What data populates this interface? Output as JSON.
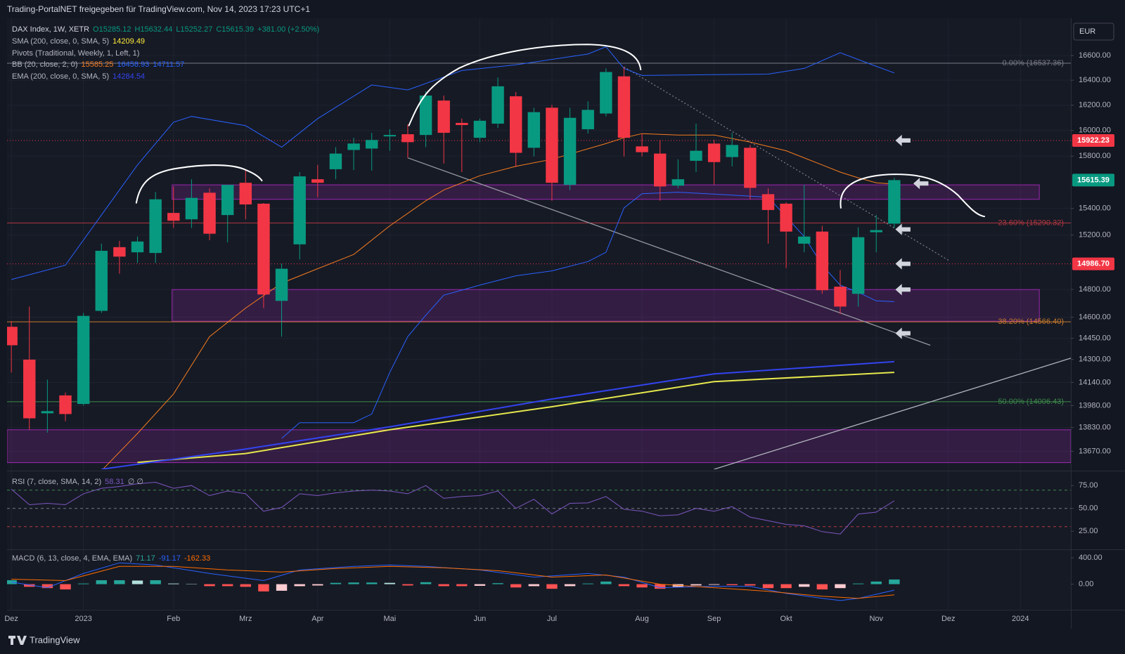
{
  "header": {
    "title": "Trading-PortalNET freigegeben für TradingView.com, Nov 14, 2023 17:23 UTC+1"
  },
  "currency": "EUR",
  "footer": "TradingView",
  "chart_data": [
    {
      "type": "candlestick",
      "legend": {
        "symbol": "DAX Index, 1W, XETR",
        "ohlc_labels": [
          "O15285.12",
          "H15632.44",
          "L15252.27",
          "C15615.39"
        ],
        "change": "+381.00 (+2.50%)"
      },
      "colors": {
        "up": "#089981",
        "down": "#f23645"
      },
      "x": [
        0,
        1,
        2,
        3,
        4,
        5,
        6,
        7,
        8,
        9,
        10,
        11,
        12,
        13,
        14,
        15,
        16,
        17,
        18,
        19,
        20,
        21,
        22,
        23,
        24,
        25,
        26,
        27,
        28,
        29,
        30,
        31,
        32,
        33,
        34,
        35,
        36,
        37,
        38,
        39,
        40,
        41,
        42,
        43,
        44,
        45,
        46,
        47,
        48,
        49
      ],
      "open": [
        14531,
        14299,
        13927,
        14050,
        13991,
        14645,
        15110,
        15072,
        15067,
        15366,
        15318,
        15519,
        15350,
        15595,
        15436,
        14717,
        15131,
        15622,
        15699,
        15848,
        15859,
        15954,
        15971,
        15965,
        16237,
        16060,
        15943,
        16054,
        16271,
        15865,
        16180,
        15579,
        16010,
        16134,
        16431,
        15876,
        15820,
        15573,
        15764,
        15898,
        15793,
        15865,
        15508,
        15436,
        15136,
        15226,
        14820,
        14768,
        15221,
        15285.12
      ],
      "high": [
        14572,
        14676,
        14159,
        14070,
        14630,
        15136,
        15157,
        15189,
        15525,
        15567,
        15622,
        15552,
        15579,
        15688,
        15441,
        14988,
        15677,
        15732,
        15870,
        15943,
        15982,
        16010,
        16049,
        16311,
        16277,
        16094,
        16094,
        16422,
        16305,
        16180,
        16203,
        16180,
        16231,
        16496,
        16507,
        15976,
        15926,
        15776,
        16054,
        15926,
        15982,
        15887,
        15552,
        15447,
        15579,
        15269,
        14941,
        15258,
        15350,
        15632.44
      ],
      "low": [
        14209,
        13815,
        13796,
        13873,
        13981,
        14630,
        14915,
        14993,
        14993,
        15253,
        15253,
        15162,
        15146,
        15318,
        14665,
        14461,
        15019,
        15485,
        15622,
        15693,
        15688,
        15842,
        15787,
        15870,
        15743,
        15677,
        15909,
        16021,
        15716,
        15798,
        15458,
        15540,
        15976,
        16111,
        15798,
        15798,
        15458,
        15552,
        15677,
        15579,
        15721,
        15469,
        15136,
        14956,
        15072,
        14768,
        14624,
        14676,
        15072,
        15252.27
      ],
      "close": [
        14400,
        13893,
        13942,
        13922,
        14609,
        15083,
        15040,
        15152,
        15469,
        15307,
        15480,
        15210,
        15579,
        15430,
        14763,
        14951,
        15644,
        15595,
        15820,
        15898,
        15926,
        15965,
        15909,
        16277,
        15982,
        16043,
        16077,
        16351,
        15826,
        16145,
        15595,
        16100,
        16163,
        16466,
        15943,
        15831,
        15567,
        15622,
        15842,
        15754,
        15887,
        15556,
        15388,
        15226,
        15189,
        14794,
        14676,
        15184,
        15237,
        15615.39
      ],
      "xlim": [
        -0.24,
        58.8
      ],
      "xticks": [
        {
          "value": 0,
          "label": "Dez"
        },
        {
          "value": 4,
          "label": "2023"
        },
        {
          "value": 9,
          "label": "Feb"
        },
        {
          "value": 13,
          "label": "Mrz"
        },
        {
          "value": 17,
          "label": "Apr"
        },
        {
          "value": 21,
          "label": "Mai"
        },
        {
          "value": 26,
          "label": "Jun"
        },
        {
          "value": 30,
          "label": "Jul"
        },
        {
          "value": 35,
          "label": "Aug"
        },
        {
          "value": 39,
          "label": "Sep"
        },
        {
          "value": 43,
          "label": "Okt"
        },
        {
          "value": 48,
          "label": "Nov"
        },
        {
          "value": 52,
          "label": "Dez"
        },
        {
          "value": 56,
          "label": "2024"
        }
      ],
      "ylim": [
        13550,
        16906
      ],
      "log_scale": true,
      "grid": true,
      "yticks": [
        {
          "value": 16600,
          "label": "16600.00"
        },
        {
          "value": 16400,
          "label": "16400.00"
        },
        {
          "value": 16200,
          "label": "16200.00"
        },
        {
          "value": 16000,
          "label": "16000.00"
        },
        {
          "value": 15800,
          "label": "15800.00"
        },
        {
          "value": 15400,
          "label": "15400.00"
        },
        {
          "value": 15200,
          "label": "15200.00"
        },
        {
          "value": 14800,
          "label": "14800.00"
        },
        {
          "value": 14600,
          "label": "14600.00"
        },
        {
          "value": 14450,
          "label": "14450.00"
        },
        {
          "value": 14300,
          "label": "14300.00"
        },
        {
          "value": 14140,
          "label": "14140.00"
        },
        {
          "value": 13980,
          "label": "13980.00"
        },
        {
          "value": 13830,
          "label": "13830.00"
        },
        {
          "value": 13670,
          "label": "13670.00"
        }
      ],
      "sma": {
        "name": "SMA (200, close, 0, SMA, 5)",
        "color": "#e6e84c",
        "x": [
          7,
          13,
          21,
          30,
          39,
          49
        ],
        "values": [
          13596,
          13655,
          13815,
          13972,
          14145,
          14209.49
        ]
      },
      "pivots": {
        "name": "Pivots (Traditional, Weekly, 1, Left, 1)",
        "color": "#f23645",
        "levels": [
          15922.23,
          {
            "value": 14986.7,
            "label": "14986.70"
          }
        ]
      },
      "bollinger": {
        "name": "BB (20, close, 2, 0)",
        "basis": {
          "color": "#f57c1f",
          "x": [
            5,
            7,
            9,
            11,
            13,
            15,
            17,
            19,
            21,
            23,
            24,
            26,
            28,
            30,
            33,
            34,
            35,
            37,
            39,
            41,
            43,
            45,
            46,
            47,
            48,
            49
          ],
          "values": [
            13540,
            13790,
            14060,
            14461,
            14665,
            14846,
            14951,
            15056,
            15269,
            15458,
            15540,
            15649,
            15721,
            15776,
            15898,
            15943,
            15976,
            15965,
            15965,
            15909,
            15842,
            15732,
            15677,
            15633,
            15595,
            15585.25
          ]
        },
        "upper": {
          "color": "#2962ff",
          "x": [
            0,
            3,
            5,
            7,
            9,
            10,
            13,
            15,
            17,
            20,
            22,
            25,
            28,
            32,
            33,
            34,
            35,
            42,
            44,
            46,
            48,
            49
          ],
          "values": [
            14872,
            14977,
            15350,
            15732,
            16066,
            16111,
            16038,
            15870,
            16094,
            16362,
            16322,
            16478,
            16524,
            16612,
            16671,
            16495,
            16438,
            16449,
            16495,
            16623,
            16512,
            16458.93
          ]
        },
        "lower": {
          "color": "#2962ff",
          "x": [
            15,
            16,
            19,
            20,
            21,
            22,
            23,
            24,
            26,
            28,
            30,
            32,
            33,
            34,
            35,
            37,
            40,
            42,
            44,
            45,
            46,
            47,
            48,
            49
          ],
          "values": [
            13757,
            13863,
            13863,
            13922,
            14209,
            14461,
            14614,
            14758,
            14831,
            14899,
            14935,
            15004,
            15072,
            15404,
            15512,
            15523,
            15501,
            15485,
            15189,
            14977,
            14831,
            14779,
            14717,
            14711.57
          ]
        }
      },
      "ema": {
        "name": "EMA (200, close, 0, SMA, 5)",
        "color": "#3344f0",
        "x": [
          5,
          13,
          21,
          30,
          39,
          49
        ],
        "values": [
          13550,
          13685,
          13835,
          14025,
          14199,
          14284.54
        ]
      },
      "fib_levels": [
        {
          "label": "0.00% (16537.36)",
          "value": 16537.36,
          "color": "#787b86"
        },
        {
          "label": "23.60% (15290.32)",
          "value": 15290.32,
          "color": "#b2373f"
        },
        {
          "label": "38.20% (14566.40)",
          "value": 14566.4,
          "color": "#c77a2c"
        },
        {
          "label": "50.00% (14006.43)",
          "value": 14006.43,
          "color": "#3c8a4a"
        }
      ],
      "zone_color": "#9c27b0",
      "zones": [
        {
          "x": [
            8.92,
            57.05
          ],
          "y": [
            15469,
            15579
          ]
        },
        {
          "x": [
            8.92,
            57.05
          ],
          "y": [
            14571,
            14799
          ]
        },
        {
          "x": [
            -0.24,
            58.8
          ],
          "y": [
            13594,
            13815
          ]
        }
      ],
      "trendlines": [
        {
          "x": [
            22,
            51
          ],
          "y": [
            15787,
            14400
          ],
          "color": "#9598a1",
          "dashed": false
        },
        {
          "x": [
            34,
            52
          ],
          "y": [
            16507,
            15014
          ],
          "color": "#787b86",
          "dashed": true
        },
        {
          "x": [
            39,
            58.8
          ],
          "y": [
            13550,
            14309
          ],
          "color": "#b2b5be",
          "dashed": false
        }
      ]
    },
    {
      "type": "line",
      "name": "RSI (7, close, SMA, 14, 2)",
      "extra_label": "∅ ∅",
      "color": "#7e57c2",
      "x": [
        0,
        1,
        2,
        3,
        4,
        5,
        6,
        7,
        8,
        9,
        10,
        11,
        12,
        13,
        14,
        15,
        16,
        17,
        18,
        19,
        20,
        21,
        22,
        23,
        24,
        25,
        26,
        27,
        28,
        29,
        30,
        31,
        32,
        33,
        34,
        35,
        36,
        37,
        38,
        39,
        40,
        41,
        42,
        43,
        44,
        45,
        46,
        47,
        48,
        49
      ],
      "values": [
        71,
        54,
        55.6,
        54,
        66,
        72,
        74,
        77,
        78.6,
        72,
        75,
        64,
        69,
        66,
        47,
        51,
        66,
        64,
        67,
        69,
        70,
        69,
        66,
        75,
        61,
        63,
        64,
        69,
        50,
        60,
        44,
        55.6,
        56,
        63,
        49,
        47,
        42,
        43,
        50,
        47,
        52,
        40.5,
        36.5,
        32.5,
        31,
        24.6,
        22,
        43.7,
        46,
        58.31
      ],
      "ylim": [
        6,
        89
      ],
      "yticks": [
        {
          "value": 75,
          "label": "75.00"
        },
        {
          "value": 50,
          "label": "50.00"
        },
        {
          "value": 25,
          "label": "25.00"
        }
      ],
      "levels": [
        {
          "value": 70,
          "color": "#3c8a4a"
        },
        {
          "value": 50,
          "color": "#787b86"
        },
        {
          "value": 30,
          "color": "#b2373f"
        }
      ]
    },
    {
      "type": "macd",
      "name": "MACD (6, 13, close, 4, EMA, EMA)",
      "x": [
        0,
        1,
        2,
        3,
        4,
        5,
        6,
        7,
        8,
        9,
        10,
        11,
        12,
        13,
        14,
        15,
        16,
        17,
        18,
        19,
        20,
        21,
        22,
        23,
        24,
        25,
        26,
        27,
        28,
        29,
        30,
        31,
        32,
        33,
        34,
        35,
        36,
        37,
        38,
        39,
        40,
        41,
        42,
        43,
        44,
        45,
        46,
        47,
        48,
        49
      ],
      "histogram": [
        60,
        -40,
        -60,
        -80,
        10,
        60,
        60,
        55,
        60,
        10,
        5,
        -30,
        -30,
        -40,
        -110,
        -100,
        -30,
        -20,
        20,
        25,
        25,
        20,
        -20,
        30,
        -30,
        -30,
        -25,
        15,
        -50,
        -30,
        -70,
        -30,
        10,
        40,
        -30,
        -50,
        -70,
        -40,
        -20,
        -10,
        -15,
        -20,
        -60,
        -60,
        -40,
        -80,
        -60,
        10,
        40,
        71.17
      ],
      "histogram_colors": [
        "#26a69a",
        "#b2dfdb",
        "#ffcdd2",
        "#ff5252"
      ],
      "macd": {
        "color": "#2962ff",
        "x": [
          0,
          2,
          4,
          6,
          8,
          11,
          14,
          16,
          19,
          21,
          23,
          26,
          29,
          32,
          34,
          36,
          39,
          41,
          43,
          45,
          46,
          47,
          49
        ],
        "values": [
          32,
          -54,
          162,
          324,
          292,
          162,
          54,
          216,
          270,
          292,
          270,
          216,
          108,
          162,
          108,
          -54,
          -32,
          -32,
          -140,
          -216,
          -249,
          -216,
          -91.17
        ]
      },
      "signal": {
        "color": "#ff6d00",
        "x": [
          0,
          3,
          6,
          9,
          12,
          15,
          18,
          21,
          24,
          27,
          30,
          33,
          36,
          39,
          42,
          45,
          47,
          49
        ],
        "values": [
          76,
          54,
          270,
          270,
          216,
          184,
          238,
          270,
          249,
          205,
          108,
          140,
          0,
          -54,
          -108,
          -184,
          -216,
          -162.33
        ]
      },
      "ylim": [
        -378,
        508
      ],
      "yticks": [
        {
          "value": 400,
          "label": "400.00"
        },
        {
          "value": 0,
          "label": "0.00"
        }
      ]
    }
  ]
}
